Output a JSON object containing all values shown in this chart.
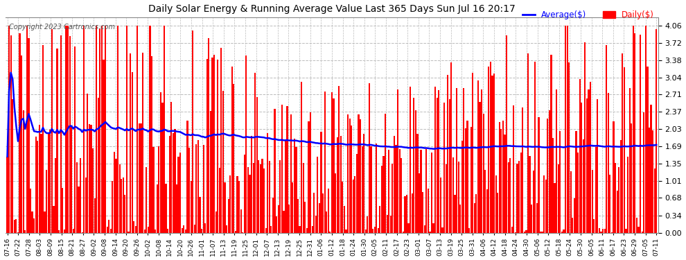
{
  "title": "Daily Solar Energy & Running Average Value Last 365 Days Sun Jul 16 20:17",
  "copyright": "Copyright 2023 Cartronics.com",
  "legend_avg": "Average($)",
  "legend_daily": "Daily($)",
  "bar_color": "#ff0000",
  "avg_line_color": "#0000ff",
  "background_color": "#ffffff",
  "plot_bg_color": "#ffffff",
  "grid_color": "#bbbbbb",
  "yticks": [
    0.0,
    0.34,
    0.68,
    1.01,
    1.35,
    1.69,
    2.03,
    2.37,
    2.71,
    3.04,
    3.38,
    3.72,
    4.06
  ],
  "ylim": [
    0.0,
    4.22
  ],
  "xtick_labels": [
    "07-16",
    "07-22",
    "07-28",
    "08-03",
    "08-09",
    "08-15",
    "08-21",
    "08-27",
    "09-02",
    "09-08",
    "09-14",
    "09-20",
    "09-26",
    "10-02",
    "10-08",
    "10-14",
    "10-20",
    "10-26",
    "11-01",
    "11-07",
    "11-13",
    "11-19",
    "11-25",
    "12-01",
    "12-07",
    "12-13",
    "12-19",
    "12-25",
    "12-31",
    "01-06",
    "01-12",
    "01-18",
    "01-24",
    "01-30",
    "02-05",
    "02-11",
    "02-17",
    "02-23",
    "03-01",
    "03-07",
    "03-13",
    "03-19",
    "03-25",
    "03-31",
    "04-06",
    "04-12",
    "04-18",
    "04-24",
    "04-30",
    "05-06",
    "05-12",
    "05-18",
    "05-24",
    "05-30",
    "06-05",
    "06-11",
    "06-17",
    "06-23",
    "06-29",
    "07-05",
    "07-11"
  ],
  "seed": 42
}
